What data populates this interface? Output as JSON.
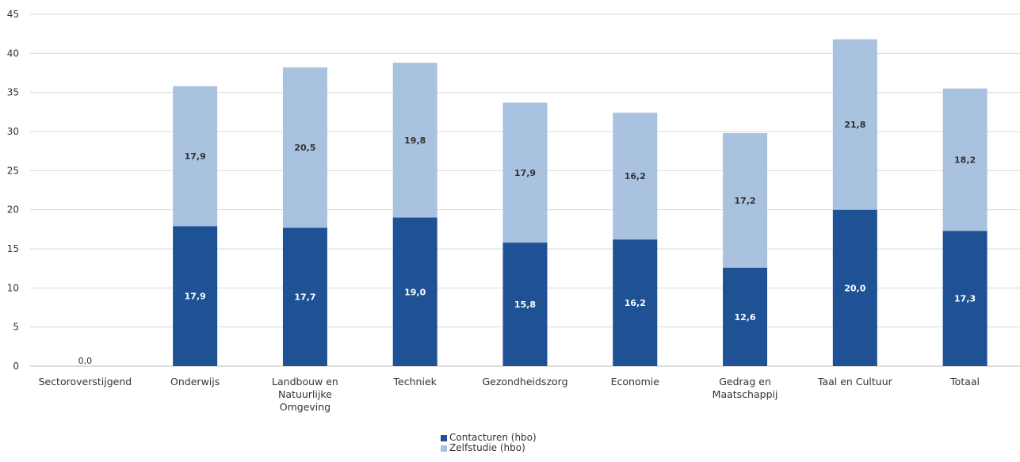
{
  "chart_data": {
    "type": "bar",
    "stacked": true,
    "categories": [
      [
        "Sectoroverstijgend"
      ],
      [
        "Onderwijs"
      ],
      [
        "Landbouw en",
        "Natuurlijke",
        "Omgeving"
      ],
      [
        "Techniek"
      ],
      [
        "Gezondheidszorg"
      ],
      [
        "Economie"
      ],
      [
        "Gedrag en",
        "Maatschappij"
      ],
      [
        "Taal en Cultuur"
      ],
      [
        "Totaal"
      ]
    ],
    "series": [
      {
        "name": "Contacturen (hbo)",
        "color": "#1f5195",
        "label_color": "#ffffff",
        "values": [
          0.0,
          17.9,
          17.7,
          19.0,
          15.8,
          16.2,
          12.6,
          20.0,
          17.3
        ],
        "labels": [
          "0,0",
          "17,9",
          "17,7",
          "19,0",
          "15,8",
          "16,2",
          "12,6",
          "20,0",
          "17,3"
        ]
      },
      {
        "name": "Zelfstudie (hbo)",
        "color": "#a8c2e0",
        "label_color": "#333333",
        "values": [
          null,
          17.9,
          20.5,
          19.8,
          17.9,
          16.2,
          17.2,
          21.8,
          18.2
        ],
        "labels": [
          "",
          "17,9",
          "20,5",
          "19,8",
          "17,9",
          "16,2",
          "17,2",
          "21,8",
          "18,2"
        ]
      }
    ],
    "ylim": [
      0,
      45
    ],
    "yticks": [
      0,
      5,
      10,
      15,
      20,
      25,
      30,
      35,
      40,
      45
    ],
    "grid": true,
    "legend_position": "bottom-center",
    "title": "",
    "xlabel": "",
    "ylabel": ""
  }
}
